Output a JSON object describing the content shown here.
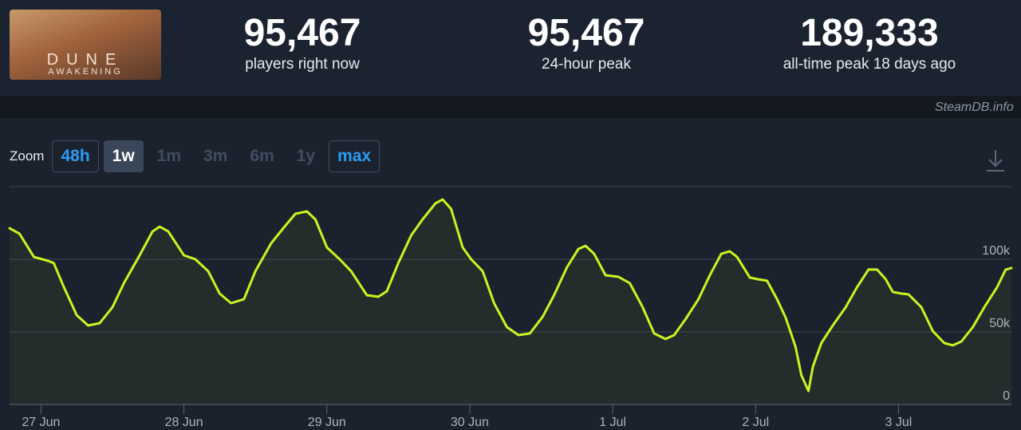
{
  "header": {
    "game_art": {
      "title": "DUNE",
      "subtitle": "AWAKENING"
    },
    "stats": [
      {
        "value": "95,467",
        "label": "players right now"
      },
      {
        "value": "95,467",
        "label": "24-hour peak"
      },
      {
        "value": "189,333",
        "label": "all-time peak 18 days ago"
      }
    ]
  },
  "credit": "SteamDB.info",
  "zoom": {
    "label": "Zoom",
    "buttons": [
      "48h",
      "1w",
      "1m",
      "3m",
      "6m",
      "1y",
      "max"
    ]
  },
  "chart_data": {
    "type": "line",
    "color": "#c8f520",
    "grid": true,
    "x": [
      -0.22,
      -0.15,
      -0.05,
      0.05,
      0.09,
      0.16,
      0.25,
      0.33,
      0.41,
      0.5,
      0.58,
      0.69,
      0.78,
      0.83,
      0.89,
      1.0,
      1.08,
      1.17,
      1.25,
      1.33,
      1.42,
      1.5,
      1.61,
      1.7,
      1.78,
      1.86,
      1.92,
      2.0,
      2.09,
      2.17,
      2.28,
      2.36,
      2.42,
      2.5,
      2.59,
      2.67,
      2.76,
      2.81,
      2.87,
      2.95,
      3.01,
      3.09,
      3.17,
      3.26,
      3.34,
      3.42,
      3.51,
      3.59,
      3.68,
      3.76,
      3.81,
      3.87,
      3.95,
      4.04,
      4.12,
      4.21,
      4.29,
      4.37,
      4.43,
      4.51,
      4.6,
      4.68,
      4.76,
      4.82,
      4.87,
      4.96,
      5.01,
      5.08,
      5.15,
      5.21,
      5.28,
      5.32,
      5.37,
      5.4,
      5.46,
      5.54,
      5.63,
      5.71,
      5.79,
      5.85,
      5.91,
      5.96,
      6.02,
      6.07,
      6.16,
      6.24,
      6.32,
      6.38,
      6.44,
      6.52,
      6.6,
      6.69,
      6.75,
      6.79
    ],
    "values": [
      121400,
      117600,
      101600,
      98900,
      97300,
      80800,
      61500,
      54400,
      56000,
      67000,
      83500,
      102700,
      119200,
      122500,
      119200,
      102700,
      100000,
      91800,
      76400,
      69800,
      72500,
      91800,
      111000,
      122000,
      131300,
      133000,
      127500,
      108200,
      100000,
      91800,
      75300,
      74200,
      78000,
      97300,
      116500,
      127500,
      138500,
      141200,
      134600,
      108200,
      100000,
      91800,
      69800,
      53300,
      47800,
      48900,
      60400,
      75300,
      94500,
      107100,
      109300,
      103800,
      89000,
      87900,
      83500,
      67000,
      48900,
      45100,
      47800,
      58800,
      72500,
      89000,
      103800,
      105500,
      101600,
      87400,
      86300,
      85200,
      72500,
      59900,
      39600,
      20300,
      9300,
      25800,
      42300,
      54400,
      67000,
      80800,
      92900,
      92900,
      86300,
      77500,
      76400,
      75800,
      67000,
      50500,
      42300,
      40700,
      43400,
      53300,
      67000,
      80800,
      92900,
      94000
    ],
    "xlim": [
      -0.22,
      6.79
    ],
    "xticks": [
      {
        "value": 0,
        "label": "27 Jun"
      },
      {
        "value": 1,
        "label": "28 Jun"
      },
      {
        "value": 2,
        "label": "29 Jun"
      },
      {
        "value": 3,
        "label": "30 Jun"
      },
      {
        "value": 4,
        "label": "1 Jul"
      },
      {
        "value": 5,
        "label": "2 Jul"
      },
      {
        "value": 6,
        "label": "3 Jul"
      }
    ],
    "ylim": [
      0,
      150000
    ],
    "yticks": [
      0,
      {
        "value": 50000,
        "label": "50k"
      },
      {
        "value": 100000,
        "label": "100k"
      }
    ]
  }
}
